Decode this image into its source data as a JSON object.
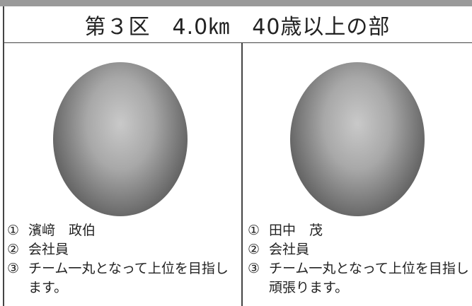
{
  "header": {
    "title": "第３区　4.0㎞　40歳以上の部"
  },
  "entries": [
    {
      "items": [
        {
          "marker": "①",
          "text": "濱﨑　政伯"
        },
        {
          "marker": "②",
          "text": "会社員"
        },
        {
          "marker": "③",
          "text": "チーム一丸となって上位を目指します。"
        }
      ]
    },
    {
      "items": [
        {
          "marker": "①",
          "text": "田中　茂"
        },
        {
          "marker": "②",
          "text": "会社員"
        },
        {
          "marker": "③",
          "text": "チーム一丸となって上位を目指し頑張ります。"
        }
      ]
    }
  ]
}
